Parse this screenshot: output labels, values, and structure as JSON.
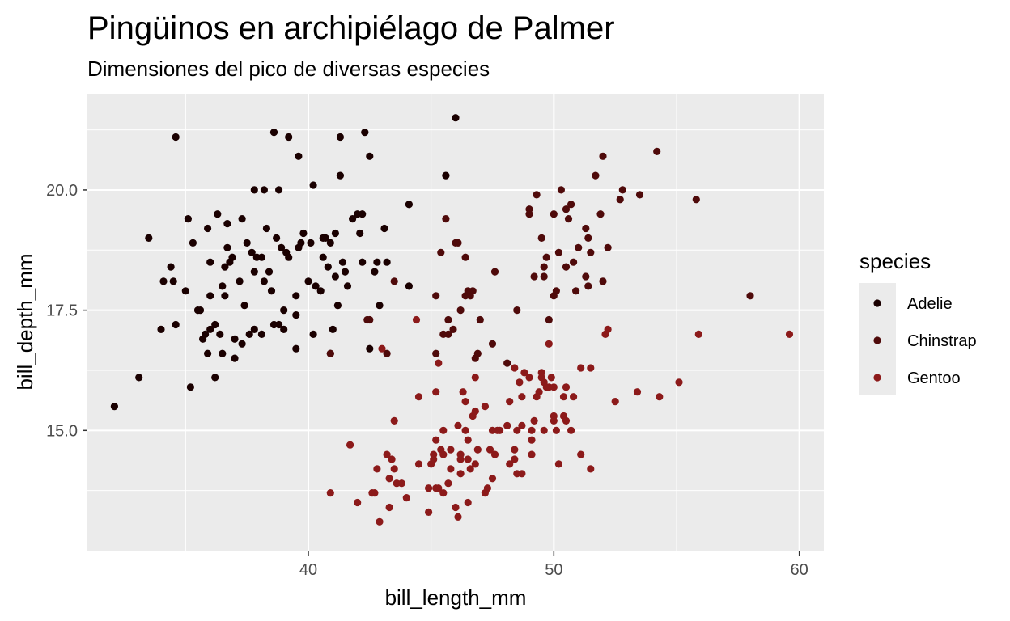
{
  "chart_data": {
    "type": "scatter",
    "title": "Pingüinos en archipiélago de Palmer",
    "subtitle": "Dimensiones del pico de diversas especies",
    "xlabel": "bill_length_mm",
    "ylabel": "bill_depth_mm",
    "xlim": [
      31.0,
      61.0
    ],
    "ylim": [
      12.5,
      22.0
    ],
    "x_ticks": [
      40,
      50,
      60
    ],
    "x_tick_labels": [
      "40",
      "50",
      "60"
    ],
    "y_ticks": [
      15.0,
      17.5,
      20.0
    ],
    "y_tick_labels": [
      "15.0",
      "17.5",
      "20.0"
    ],
    "grid": true,
    "legend": {
      "title": "species",
      "position": "right"
    },
    "series": [
      {
        "name": "Adelie",
        "color": "#1a0000",
        "points": [
          [
            32.1,
            15.5
          ],
          [
            33.1,
            16.1
          ],
          [
            33.5,
            19.0
          ],
          [
            34.0,
            17.1
          ],
          [
            34.1,
            18.1
          ],
          [
            34.4,
            18.4
          ],
          [
            34.5,
            18.1
          ],
          [
            34.6,
            17.2
          ],
          [
            34.6,
            21.1
          ],
          [
            35.0,
            17.9
          ],
          [
            35.1,
            19.4
          ],
          [
            35.2,
            15.9
          ],
          [
            35.3,
            18.9
          ],
          [
            35.5,
            17.5
          ],
          [
            35.6,
            17.5
          ],
          [
            35.7,
            16.9
          ],
          [
            35.8,
            17.0
          ],
          [
            35.9,
            16.6
          ],
          [
            35.9,
            19.2
          ],
          [
            36.0,
            17.8
          ],
          [
            36.0,
            17.1
          ],
          [
            36.0,
            18.5
          ],
          [
            36.2,
            16.1
          ],
          [
            36.2,
            17.2
          ],
          [
            36.3,
            19.5
          ],
          [
            36.4,
            17.0
          ],
          [
            36.5,
            18.0
          ],
          [
            36.5,
            16.6
          ],
          [
            36.6,
            17.8
          ],
          [
            36.7,
            18.8
          ],
          [
            36.7,
            19.3
          ],
          [
            36.8,
            18.5
          ],
          [
            36.9,
            18.6
          ],
          [
            37.0,
            16.9
          ],
          [
            37.0,
            16.5
          ],
          [
            37.2,
            18.1
          ],
          [
            37.3,
            16.8
          ],
          [
            37.3,
            19.4
          ],
          [
            37.5,
            18.9
          ],
          [
            37.6,
            17.0
          ],
          [
            37.7,
            18.7
          ],
          [
            37.8,
            17.1
          ],
          [
            37.8,
            18.3
          ],
          [
            37.8,
            20.0
          ],
          [
            37.9,
            18.6
          ],
          [
            38.1,
            17.0
          ],
          [
            38.1,
            18.6
          ],
          [
            38.2,
            18.1
          ],
          [
            38.2,
            20.0
          ],
          [
            38.3,
            19.2
          ],
          [
            38.6,
            21.2
          ],
          [
            38.6,
            17.2
          ],
          [
            38.7,
            19.0
          ],
          [
            38.8,
            17.2
          ],
          [
            38.8,
            20.0
          ],
          [
            38.9,
            18.8
          ],
          [
            39.0,
            17.1
          ],
          [
            39.1,
            18.7
          ],
          [
            39.2,
            18.6
          ],
          [
            39.2,
            21.1
          ],
          [
            39.5,
            16.7
          ],
          [
            39.5,
            17.4
          ],
          [
            39.5,
            17.8
          ],
          [
            39.6,
            20.7
          ],
          [
            39.6,
            18.8
          ],
          [
            39.7,
            18.9
          ],
          [
            39.8,
            19.1
          ],
          [
            40.1,
            18.9
          ],
          [
            40.2,
            17.0
          ],
          [
            40.2,
            20.1
          ],
          [
            40.3,
            18.0
          ],
          [
            40.5,
            17.9
          ],
          [
            40.6,
            18.6
          ],
          [
            40.6,
            19.0
          ],
          [
            40.7,
            19.0
          ],
          [
            40.8,
            18.4
          ],
          [
            40.9,
            18.9
          ],
          [
            40.9,
            16.6
          ],
          [
            41.0,
            17.1
          ],
          [
            41.1,
            18.2
          ],
          [
            41.1,
            19.1
          ],
          [
            41.3,
            20.3
          ],
          [
            41.3,
            21.1
          ],
          [
            41.4,
            18.5
          ],
          [
            41.5,
            18.3
          ],
          [
            41.6,
            18.0
          ],
          [
            41.8,
            19.4
          ],
          [
            42.0,
            19.5
          ],
          [
            42.1,
            19.1
          ],
          [
            42.2,
            18.5
          ],
          [
            42.2,
            19.5
          ],
          [
            42.3,
            21.2
          ],
          [
            42.5,
            20.7
          ],
          [
            42.5,
            16.7
          ],
          [
            42.7,
            18.3
          ],
          [
            42.9,
            17.6
          ],
          [
            43.1,
            19.2
          ],
          [
            43.2,
            18.5
          ],
          [
            44.1,
            18.0
          ],
          [
            44.1,
            19.7
          ],
          [
            45.6,
            20.3
          ],
          [
            46.0,
            21.5
          ],
          [
            36.6,
            18.4
          ],
          [
            38.5,
            17.9
          ],
          [
            40.0,
            18.1
          ],
          [
            39.0,
            17.5
          ],
          [
            41.2,
            17.6
          ],
          [
            37.4,
            17.6
          ],
          [
            38.4,
            18.3
          ],
          [
            42.8,
            18.5
          ]
        ]
      },
      {
        "name": "Chinstrap",
        "color": "#4f0a0a",
        "points": [
          [
            40.9,
            16.6
          ],
          [
            42.4,
            17.3
          ],
          [
            42.5,
            17.3
          ],
          [
            43.2,
            16.6
          ],
          [
            43.5,
            18.1
          ],
          [
            45.2,
            16.6
          ],
          [
            45.2,
            17.8
          ],
          [
            45.4,
            18.7
          ],
          [
            45.5,
            17.0
          ],
          [
            45.6,
            19.4
          ],
          [
            45.7,
            17.0
          ],
          [
            45.7,
            17.3
          ],
          [
            45.9,
            17.1
          ],
          [
            46.0,
            18.9
          ],
          [
            46.1,
            18.9
          ],
          [
            46.2,
            17.5
          ],
          [
            46.4,
            17.8
          ],
          [
            46.4,
            18.6
          ],
          [
            46.5,
            17.9
          ],
          [
            46.6,
            17.8
          ],
          [
            46.7,
            17.9
          ],
          [
            46.8,
            16.5
          ],
          [
            46.9,
            16.6
          ],
          [
            47.0,
            17.3
          ],
          [
            47.5,
            16.8
          ],
          [
            47.6,
            18.3
          ],
          [
            48.1,
            16.4
          ],
          [
            48.5,
            17.5
          ],
          [
            49.0,
            19.5
          ],
          [
            49.0,
            19.6
          ],
          [
            49.2,
            18.2
          ],
          [
            49.3,
            19.9
          ],
          [
            49.5,
            19.0
          ],
          [
            49.6,
            18.2
          ],
          [
            49.7,
            18.6
          ],
          [
            49.8,
            17.3
          ],
          [
            50.0,
            19.5
          ],
          [
            50.1,
            17.9
          ],
          [
            50.2,
            18.7
          ],
          [
            50.3,
            20.0
          ],
          [
            50.5,
            19.6
          ],
          [
            50.5,
            18.4
          ],
          [
            50.6,
            19.4
          ],
          [
            50.7,
            19.7
          ],
          [
            50.8,
            18.5
          ],
          [
            50.9,
            17.9
          ],
          [
            51.0,
            18.8
          ],
          [
            51.3,
            18.2
          ],
          [
            51.3,
            19.2
          ],
          [
            51.4,
            19.0
          ],
          [
            51.5,
            18.7
          ],
          [
            51.7,
            20.3
          ],
          [
            51.9,
            19.5
          ],
          [
            52.0,
            18.1
          ],
          [
            52.0,
            20.7
          ],
          [
            52.2,
            18.8
          ],
          [
            52.7,
            19.8
          ],
          [
            52.8,
            20.0
          ],
          [
            53.5,
            19.9
          ],
          [
            54.2,
            20.8
          ],
          [
            55.8,
            19.8
          ],
          [
            58.0,
            17.8
          ],
          [
            49.6,
            18.4
          ],
          [
            50.0,
            17.8
          ],
          [
            51.4,
            18.0
          ]
        ]
      },
      {
        "name": "Gentoo",
        "color": "#8c1a1a",
        "points": [
          [
            40.9,
            13.7
          ],
          [
            41.7,
            14.7
          ],
          [
            42.0,
            13.5
          ],
          [
            42.6,
            13.7
          ],
          [
            42.7,
            13.7
          ],
          [
            42.8,
            14.2
          ],
          [
            42.9,
            13.1
          ],
          [
            43.2,
            14.5
          ],
          [
            43.3,
            13.4
          ],
          [
            43.3,
            14.0
          ],
          [
            43.4,
            14.4
          ],
          [
            43.5,
            14.2
          ],
          [
            43.5,
            15.2
          ],
          [
            43.6,
            13.9
          ],
          [
            43.8,
            13.9
          ],
          [
            44.0,
            13.6
          ],
          [
            44.4,
            17.3
          ],
          [
            44.5,
            14.3
          ],
          [
            44.5,
            15.7
          ],
          [
            44.9,
            13.3
          ],
          [
            44.9,
            13.8
          ],
          [
            45.0,
            14.3
          ],
          [
            45.1,
            14.4
          ],
          [
            45.1,
            14.5
          ],
          [
            45.2,
            13.8
          ],
          [
            45.2,
            14.8
          ],
          [
            45.2,
            15.8
          ],
          [
            45.3,
            13.8
          ],
          [
            45.3,
            16.4
          ],
          [
            45.4,
            14.6
          ],
          [
            45.5,
            13.7
          ],
          [
            45.5,
            14.5
          ],
          [
            45.5,
            15.0
          ],
          [
            45.7,
            13.9
          ],
          [
            45.8,
            14.2
          ],
          [
            45.8,
            14.6
          ],
          [
            46.1,
            13.2
          ],
          [
            46.1,
            15.1
          ],
          [
            46.2,
            14.1
          ],
          [
            46.2,
            14.4
          ],
          [
            46.2,
            14.5
          ],
          [
            46.3,
            15.8
          ],
          [
            46.4,
            15.0
          ],
          [
            46.4,
            15.6
          ],
          [
            46.5,
            13.5
          ],
          [
            46.5,
            14.4
          ],
          [
            46.5,
            14.8
          ],
          [
            46.6,
            14.2
          ],
          [
            46.7,
            15.3
          ],
          [
            46.8,
            14.3
          ],
          [
            46.8,
            15.4
          ],
          [
            46.8,
            16.1
          ],
          [
            46.9,
            14.6
          ],
          [
            47.2,
            13.7
          ],
          [
            47.2,
            15.5
          ],
          [
            47.3,
            13.8
          ],
          [
            47.4,
            14.6
          ],
          [
            47.5,
            14.0
          ],
          [
            47.5,
            15.0
          ],
          [
            47.6,
            14.5
          ],
          [
            47.7,
            15.0
          ],
          [
            47.8,
            15.0
          ],
          [
            48.1,
            15.1
          ],
          [
            48.2,
            14.3
          ],
          [
            48.2,
            15.6
          ],
          [
            48.4,
            14.4
          ],
          [
            48.4,
            14.6
          ],
          [
            48.4,
            16.3
          ],
          [
            48.5,
            14.1
          ],
          [
            48.5,
            15.0
          ],
          [
            48.6,
            16.0
          ],
          [
            48.7,
            14.1
          ],
          [
            48.7,
            15.1
          ],
          [
            48.7,
            15.7
          ],
          [
            48.8,
            16.2
          ],
          [
            49.0,
            16.1
          ],
          [
            49.1,
            14.5
          ],
          [
            49.1,
            14.8
          ],
          [
            49.1,
            15.0
          ],
          [
            49.2,
            15.2
          ],
          [
            49.3,
            15.7
          ],
          [
            49.4,
            15.8
          ],
          [
            49.5,
            16.1
          ],
          [
            49.5,
            16.2
          ],
          [
            49.6,
            15.0
          ],
          [
            49.6,
            16.0
          ],
          [
            49.7,
            15.9
          ],
          [
            49.8,
            15.9
          ],
          [
            49.8,
            16.8
          ],
          [
            49.9,
            16.1
          ],
          [
            50.0,
            15.2
          ],
          [
            50.0,
            15.3
          ],
          [
            50.0,
            15.9
          ],
          [
            50.1,
            15.0
          ],
          [
            50.2,
            14.3
          ],
          [
            50.4,
            15.3
          ],
          [
            50.4,
            15.7
          ],
          [
            50.5,
            15.2
          ],
          [
            50.5,
            15.9
          ],
          [
            50.7,
            15.0
          ],
          [
            50.8,
            15.7
          ],
          [
            51.1,
            14.5
          ],
          [
            51.1,
            16.3
          ],
          [
            51.5,
            14.2
          ],
          [
            51.5,
            16.3
          ],
          [
            52.1,
            17.0
          ],
          [
            52.2,
            17.1
          ],
          [
            52.5,
            15.6
          ],
          [
            53.4,
            15.8
          ],
          [
            54.3,
            15.7
          ],
          [
            55.1,
            16.0
          ],
          [
            55.9,
            17.0
          ],
          [
            59.6,
            17.0
          ],
          [
            43.0,
            16.7
          ],
          [
            46.0,
            13.4
          ]
        ]
      }
    ]
  }
}
